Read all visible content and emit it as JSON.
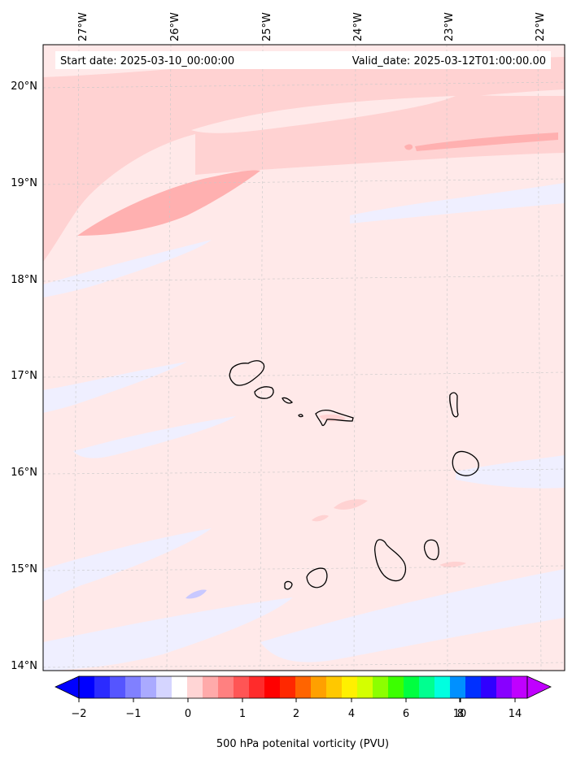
{
  "header": {
    "start_date": "Start date: 2025-03-10_00:00:00",
    "valid_date": "Valid_date: 2025-03-12T01:00:00.00"
  },
  "map": {
    "lon_labels": [
      "27°W",
      "26°W",
      "25°W",
      "24°W",
      "23°W",
      "22°W"
    ],
    "lat_labels": [
      "20°N",
      "19°N",
      "18°N",
      "17°N",
      "16°N",
      "15°N",
      "14°N"
    ],
    "grid": true,
    "region": "Cape Verde"
  },
  "colorbar": {
    "tick_labels": [
      "−2",
      "−1",
      "0",
      "1",
      "2",
      "4",
      "6",
      "8",
      "10",
      "14"
    ],
    "colors": [
      "#0000ff",
      "#2b2bff",
      "#5555ff",
      "#8080ff",
      "#aaaaff",
      "#d5d5ff",
      "#ffffff",
      "#ffd5d5",
      "#ffaaaa",
      "#ff8080",
      "#ff5555",
      "#ff2b2b",
      "#ff0000",
      "#ff2800",
      "#ff6400",
      "#ffa000",
      "#ffc800",
      "#fff000",
      "#d4ff00",
      "#8cff00",
      "#3cff00",
      "#00ff40",
      "#00ff90",
      "#00ffe0",
      "#0090ff",
      "#0030ff",
      "#3000ff",
      "#8800ff",
      "#c000ff"
    ],
    "extend_low_color": "#0000ff",
    "extend_high_color": "#c000ff",
    "label": "500 hPa potenital vorticity (PVU)"
  }
}
